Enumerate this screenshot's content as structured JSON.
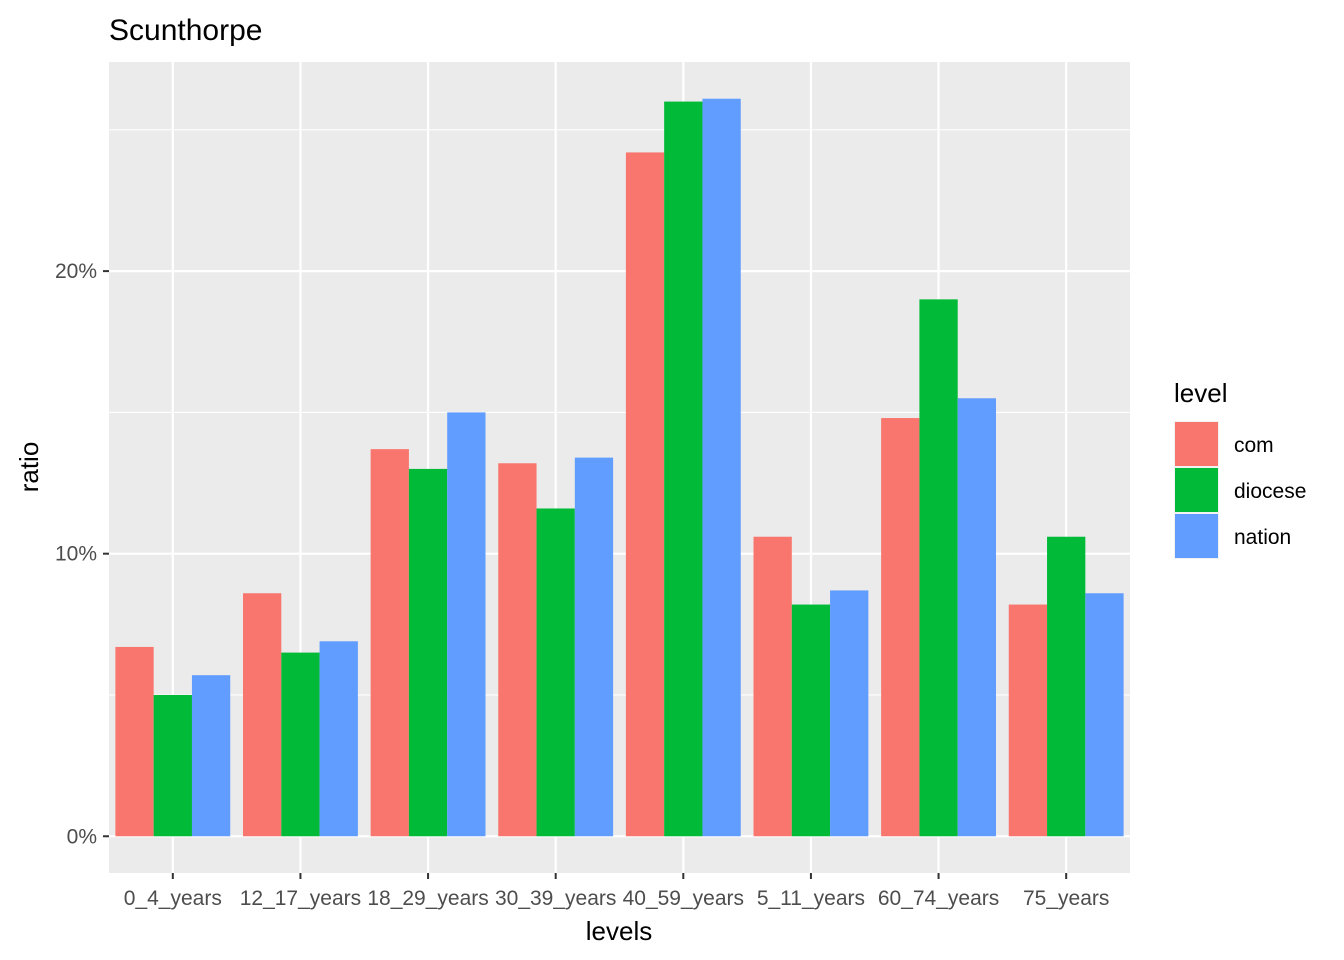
{
  "chart_data": {
    "type": "bar",
    "title": "Scunthorpe",
    "xlabel": "levels",
    "ylabel": "ratio",
    "categories": [
      "0_4_years",
      "12_17_years",
      "18_29_years",
      "30_39_years",
      "40_59_years",
      "5_11_years",
      "60_74_years",
      "75_years"
    ],
    "series": [
      {
        "name": "com",
        "color": "#F8766D",
        "values": [
          6.7,
          8.6,
          13.7,
          13.2,
          24.2,
          10.6,
          14.8,
          8.2
        ]
      },
      {
        "name": "diocese",
        "color": "#00BA38",
        "values": [
          5.0,
          6.5,
          13.0,
          11.6,
          26.0,
          8.2,
          19.0,
          10.6
        ]
      },
      {
        "name": "nation",
        "color": "#619CFF",
        "values": [
          5.7,
          6.9,
          15.0,
          13.4,
          26.1,
          8.7,
          15.5,
          8.6
        ]
      }
    ],
    "ylim": [
      -1.3,
      27.4
    ],
    "y_breaks": [
      0,
      10,
      20
    ],
    "y_tick_labels": [
      "0%",
      "10%",
      "20%"
    ],
    "y_minor_breaks": [
      5,
      15,
      25
    ],
    "grid": true,
    "legend": {
      "title": "level",
      "position": "right"
    }
  }
}
